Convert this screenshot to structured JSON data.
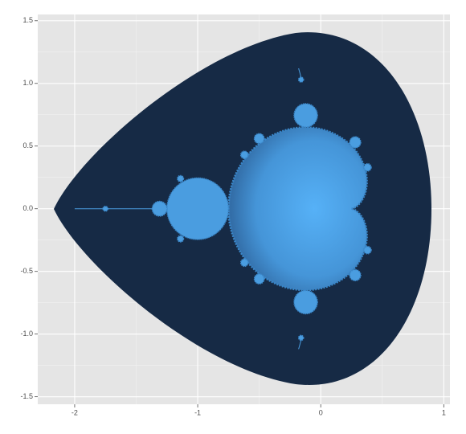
{
  "chart_data": {
    "type": "image",
    "xlim": [
      -2.3,
      1.05
    ],
    "ylim": [
      -1.56,
      1.55
    ],
    "xticks": [
      -2,
      -1,
      0,
      1
    ],
    "yticks": [
      {
        "value": -1.5,
        "label": "-1.5"
      },
      {
        "value": -1,
        "label": "-1.0"
      },
      {
        "value": -0.5,
        "label": "-0.5"
      },
      {
        "value": 0,
        "label": "0.0"
      },
      {
        "value": 0.5,
        "label": "0.5"
      },
      {
        "value": 1,
        "label": "1.0"
      },
      {
        "value": 1.5,
        "label": "1.5"
      }
    ],
    "grid": true
  }
}
